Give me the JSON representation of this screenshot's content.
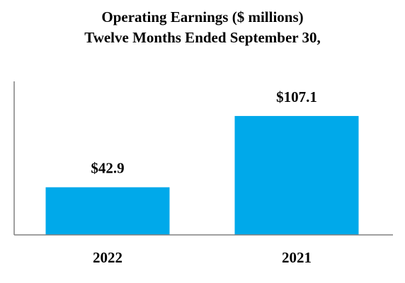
{
  "chart_data": {
    "type": "bar",
    "title": "Operating Earnings ($ millions)",
    "subtitle": "Twelve Months Ended September 30,",
    "xlabel": "",
    "ylabel": "",
    "categories": [
      "2022",
      "2021"
    ],
    "values": [
      42.9,
      107.1
    ],
    "value_labels": [
      "$42.9",
      "$107.1"
    ],
    "ylim": [
      0,
      130
    ],
    "grid": false,
    "legend": "none",
    "bar_color": "#00a9ea",
    "axis_color": "#808080"
  }
}
